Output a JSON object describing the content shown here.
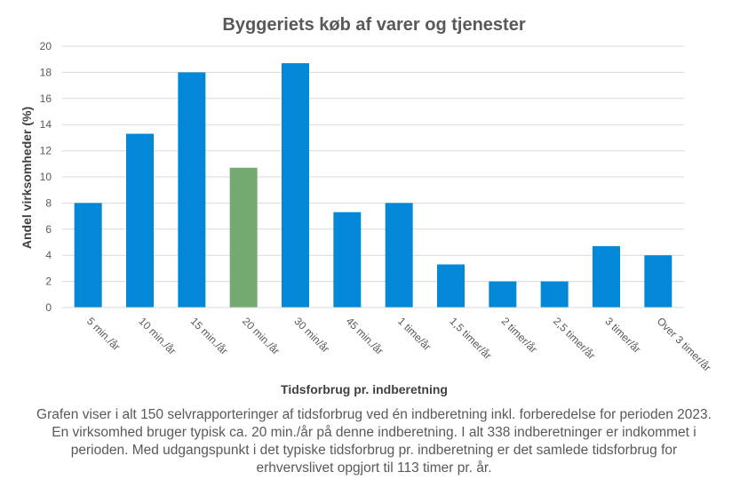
{
  "chart_data": {
    "type": "bar",
    "title": "Byggeriets  køb af varer  og tjenester",
    "ylabel": "Andel virksomheder  (%)",
    "xlabel": "Tidsforbrug pr. indberetning",
    "ylim": [
      0,
      20
    ],
    "yticks": [
      0,
      2,
      4,
      6,
      8,
      10,
      12,
      14,
      16,
      18,
      20
    ],
    "grid": true,
    "categories": [
      "5 min./år",
      "10 min./år",
      "15 min./år",
      "20 min./år",
      "30 min/år",
      "45 min./år",
      "1 time/år",
      "1,5 timer/år",
      "2 timer/år",
      "2,5 timer/år",
      "3 timer/år",
      "Over 3 timer/år"
    ],
    "values": [
      8.0,
      13.3,
      18.0,
      10.7,
      18.7,
      7.3,
      8.0,
      3.3,
      2.0,
      2.0,
      4.7,
      4.0
    ],
    "highlight_index": 3,
    "colors": {
      "bar": "#0288d6",
      "highlight": "#74aa6f",
      "grid": "#d9d9d9",
      "text": "#595959"
    }
  },
  "caption": "Grafen viser i alt 150 selvrapporteringer  af tidsforbrug ved én indberetning inkl. forberedelse for perioden 2023. En virksomhed bruger typisk ca. 20 min./år på denne indberetning.  I alt 338 indberetninger er indkommet i perioden. Med udgangspunkt i det typiske tidsforbrug pr. indberetning  er det samlede tidsforbrug for erhvervslivet opgjort til 113 timer pr. år."
}
